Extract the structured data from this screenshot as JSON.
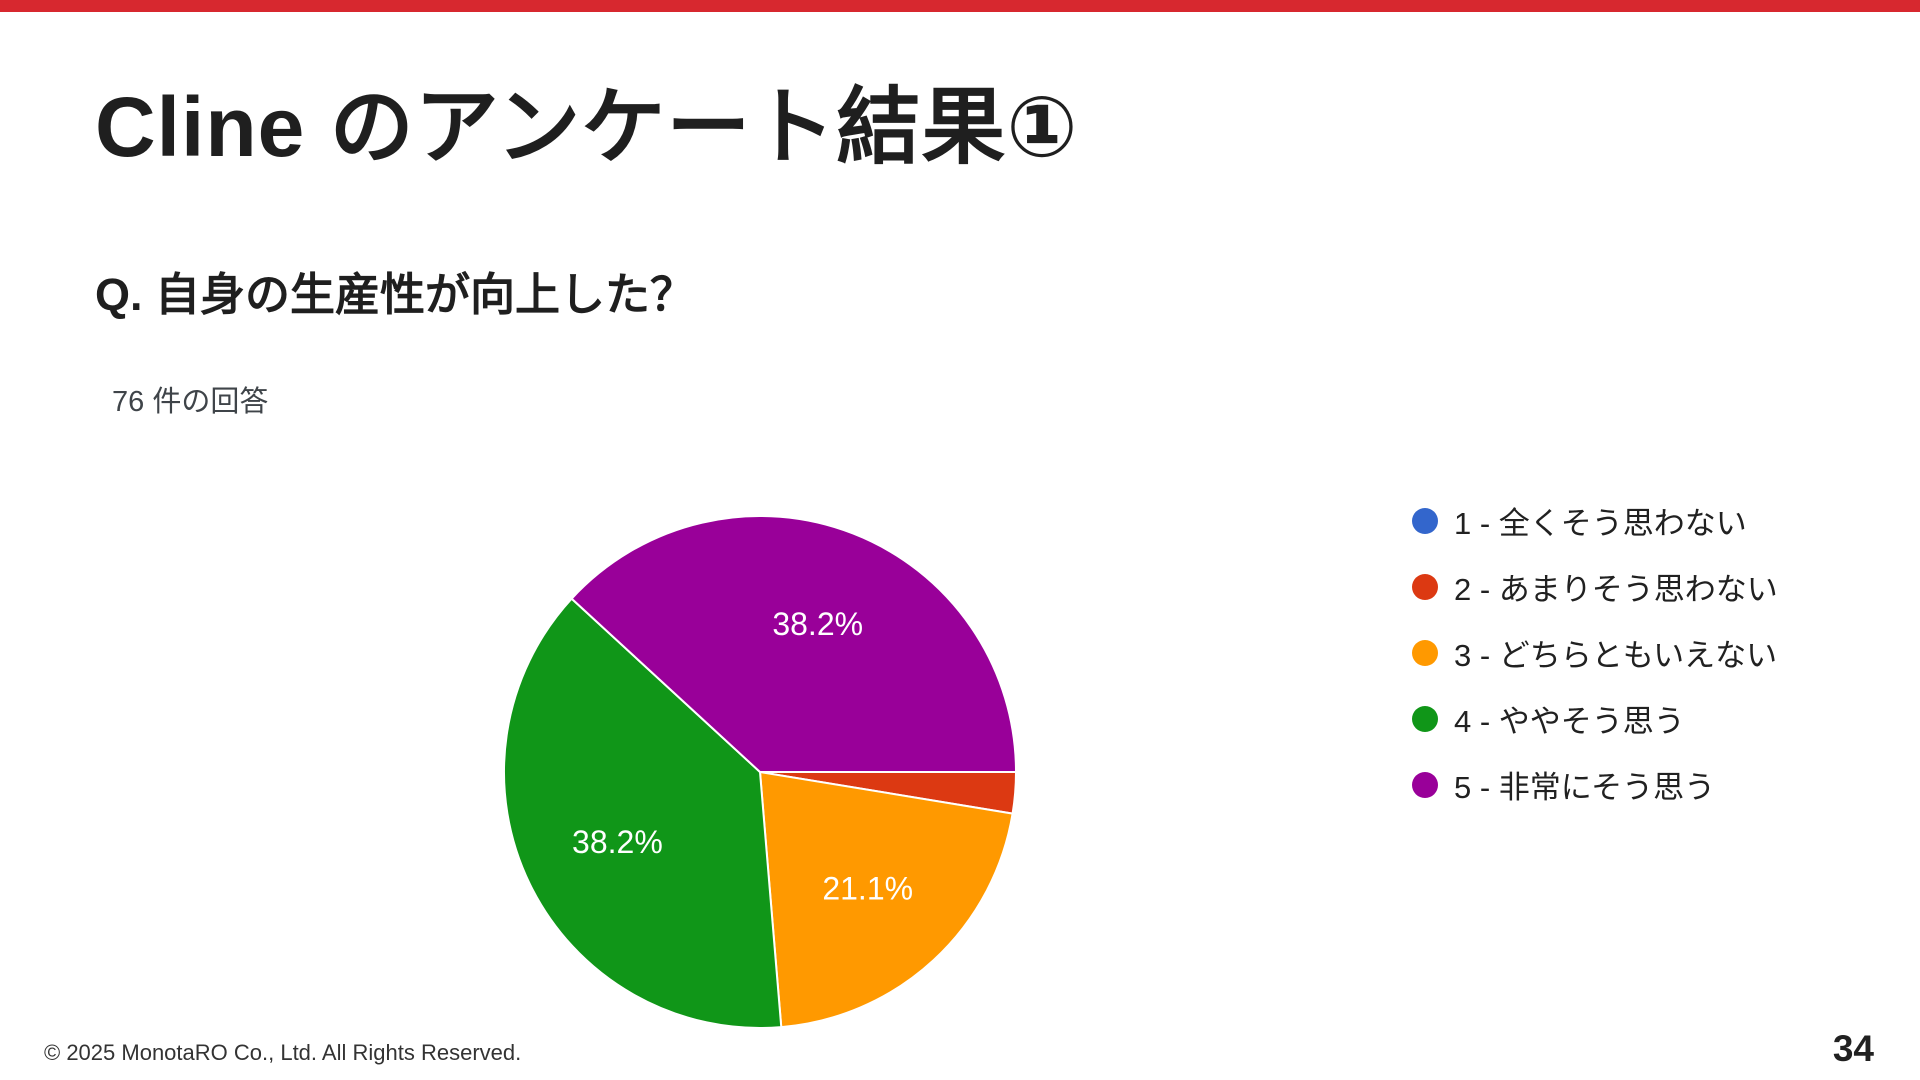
{
  "slide": {
    "title": "Cline のアンケート結果①",
    "question": "Q. 自身の生産性が向上した？",
    "response_count": "76 件の回答",
    "footer": "© 2025 MonotaRO Co., Ltd. All Rights Reserved.",
    "page_number": "34"
  },
  "colors": {
    "top_bar_red": "#d7282f",
    "background": "#ffffff",
    "text_dark": "#1f1f1f"
  },
  "chart_data": {
    "type": "pie",
    "title": "Q. 自身の生産性が向上した？",
    "subtitle": "76 件の回答",
    "total_responses_text": "76 件の回答",
    "legend_position": "right",
    "start_angle_deg": 0,
    "direction": "clockwise",
    "label_threshold_percent": 10,
    "slices": [
      {
        "label": "1 - 全くそう思わない",
        "value": 0,
        "percent": "0%",
        "color": "#3366CC"
      },
      {
        "label": "2 - あまりそう思わない",
        "value": 2.6,
        "percent": "2.6%",
        "color": "#DC3912"
      },
      {
        "label": "3 - どちらともいえない",
        "value": 21.1,
        "percent": "21.1%",
        "color": "#FF9900"
      },
      {
        "label": "4 - ややそう思う",
        "value": 38.2,
        "percent": "38.2%",
        "color": "#109618"
      },
      {
        "label": "5 - 非常にそう思う",
        "value": 38.2,
        "percent": "38.2%",
        "color": "#990099"
      }
    ]
  }
}
